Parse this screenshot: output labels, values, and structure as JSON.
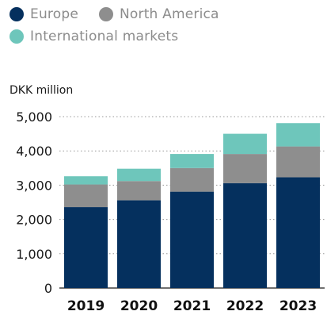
{
  "chart_data": {
    "type": "bar",
    "stacked": true,
    "unit_label": "DKK million",
    "categories": [
      "2019",
      "2020",
      "2021",
      "2022",
      "2023"
    ],
    "series": [
      {
        "name": "Europe",
        "color": "#05305e",
        "values": [
          2360,
          2560,
          2810,
          3060,
          3230
        ]
      },
      {
        "name": "North America",
        "color": "#8e8e8e",
        "values": [
          660,
          560,
          690,
          850,
          900
        ]
      },
      {
        "name": "International markets",
        "color": "#6ec6bb",
        "values": [
          240,
          360,
          410,
          590,
          680
        ]
      }
    ],
    "ylim": [
      0,
      5000
    ],
    "yticks": [
      "0",
      "1,000",
      "2,000",
      "3,000",
      "4,000",
      "5,000"
    ],
    "grid": "dotted horizontal",
    "legend_position": "top-left"
  }
}
